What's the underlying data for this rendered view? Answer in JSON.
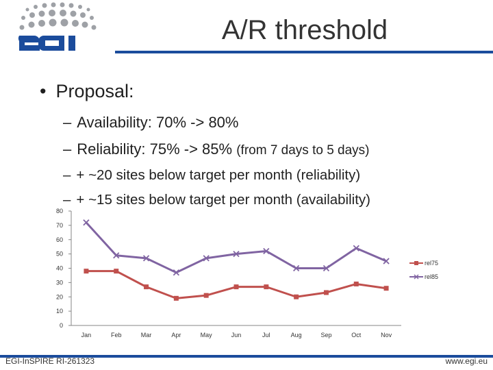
{
  "slide": {
    "title": "A/R threshold",
    "bullet": "Proposal:",
    "bullet_marker": "•",
    "sub_marker": "–",
    "subs": [
      {
        "text": "Availability: 70% -> 80%",
        "note": ""
      },
      {
        "text": "Reliability: 75% -> 85%",
        "note": "(from 7 days to 5 days)"
      },
      {
        "text": "+ ~20 sites below target per month (reliability)",
        "note": ""
      },
      {
        "text": "+ ~15 sites below target per month (availability)",
        "note": ""
      }
    ]
  },
  "footer": {
    "left": "EGI-InSPIRE RI-261323",
    "right": "www.egi.eu"
  },
  "colors": {
    "rel75": "#c0504d",
    "rel85": "#8064a2",
    "brand_blue": "#1b4c9c",
    "logo_gray": "#9ea1a6"
  },
  "chart_data": {
    "type": "line",
    "categories": [
      "Jan",
      "Feb",
      "Mar",
      "Apr",
      "May",
      "Jun",
      "Jul",
      "Aug",
      "Sep",
      "Oct",
      "Nov"
    ],
    "series": [
      {
        "name": "rel75",
        "marker": "square",
        "values": [
          38,
          38,
          27,
          19,
          21,
          27,
          27,
          20,
          23,
          29,
          26
        ]
      },
      {
        "name": "rel85",
        "marker": "x",
        "values": [
          72,
          49,
          47,
          37,
          47,
          50,
          52,
          40,
          40,
          54,
          45
        ]
      }
    ],
    "ylim": [
      0,
      80
    ],
    "yticks": [
      0,
      10,
      20,
      30,
      40,
      50,
      60,
      70,
      80
    ],
    "grid": false,
    "legend": "right"
  }
}
